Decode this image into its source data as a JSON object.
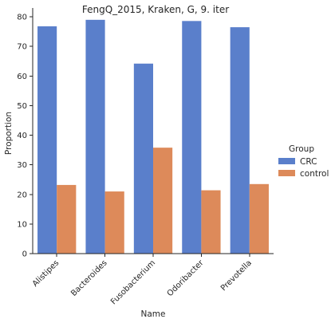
{
  "chart_data": {
    "type": "bar",
    "title": "FengQ_2015, Kraken, G, 9. iter",
    "xlabel": "Name",
    "ylabel": "Proportion",
    "categories": [
      "Alistipes",
      "Bacteroides",
      "Fusobacterium",
      "Odoribacter",
      "Prevotella"
    ],
    "series": [
      {
        "name": "CRC",
        "color": "#5a7fcb",
        "values": [
          76.8,
          79.0,
          64.2,
          78.6,
          76.5
        ]
      },
      {
        "name": "control",
        "color": "#dd8a5a",
        "values": [
          23.2,
          21.0,
          35.8,
          21.4,
          23.5
        ]
      }
    ],
    "ylim": [
      0,
      83
    ],
    "yticks": [
      0,
      10,
      20,
      30,
      40,
      50,
      60,
      70,
      80
    ],
    "grid": false,
    "legend": {
      "title": "Group",
      "position": "right"
    }
  }
}
